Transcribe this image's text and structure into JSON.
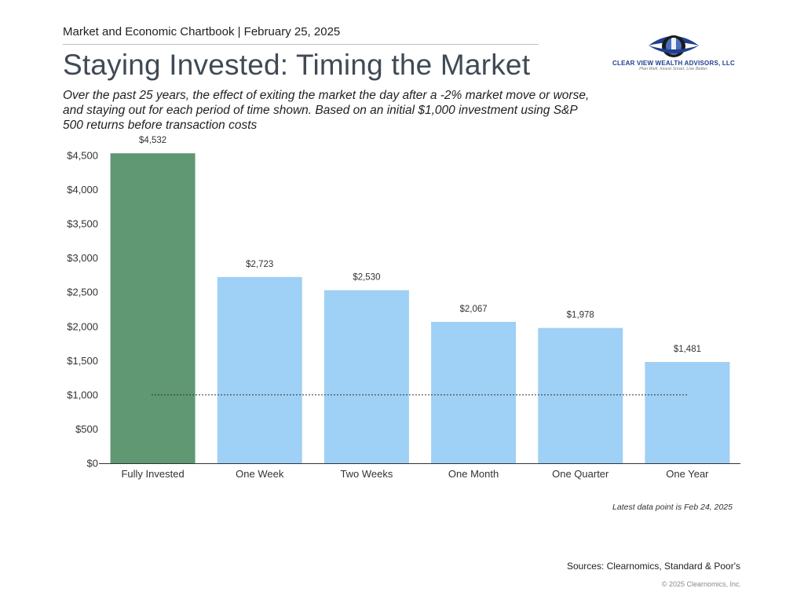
{
  "header": {
    "chartbook_line": "Market and Economic Chartbook | February 25, 2025",
    "title": "Staying Invested: Timing the Market",
    "subtitle": "Over the past 25 years, the effect of exiting the market the day after a -2% market move or worse, and staying out for each period of time shown. Based on an initial $1,000 investment using S&P 500 returns before transaction costs"
  },
  "logo": {
    "name": "CLEAR VIEW WEALTH ADVISORS, LLC",
    "tagline": "Plan Well. Invest Smart. Live Better.",
    "icon": "eye-logo-icon",
    "colors": {
      "blue": "#1f3f8f",
      "dark": "#1a1a1a"
    }
  },
  "chart_data": {
    "type": "bar",
    "categories": [
      "Fully Invested",
      "One Week",
      "Two Weeks",
      "One Month",
      "One Quarter",
      "One Year"
    ],
    "values": [
      4532,
      2723,
      2530,
      2067,
      1978,
      1481
    ],
    "value_labels": [
      "$4,532",
      "$2,723",
      "$2,530",
      "$2,067",
      "$1,978",
      "$1,481"
    ],
    "bar_colors": [
      "#5f9873",
      "#9fd0f5",
      "#9fd0f5",
      "#9fd0f5",
      "#9fd0f5",
      "#9fd0f5"
    ],
    "ylim": [
      0,
      4500
    ],
    "yticks": [
      0,
      500,
      1000,
      1500,
      2000,
      2500,
      3000,
      3500,
      4000,
      4500
    ],
    "ytick_labels": [
      "$0",
      "$500",
      "$1,000",
      "$1,500",
      "$2,000",
      "$2,500",
      "$3,000",
      "$3,500",
      "$4,000",
      "$4,500"
    ],
    "reference_line": {
      "value": 1000,
      "style": "dotted"
    },
    "grid": false
  },
  "footer": {
    "note": "Latest data point is Feb 24, 2025",
    "sources": "Sources: Clearnomics, Standard & Poor's",
    "copyright": "© 2025 Clearnomics, Inc."
  }
}
